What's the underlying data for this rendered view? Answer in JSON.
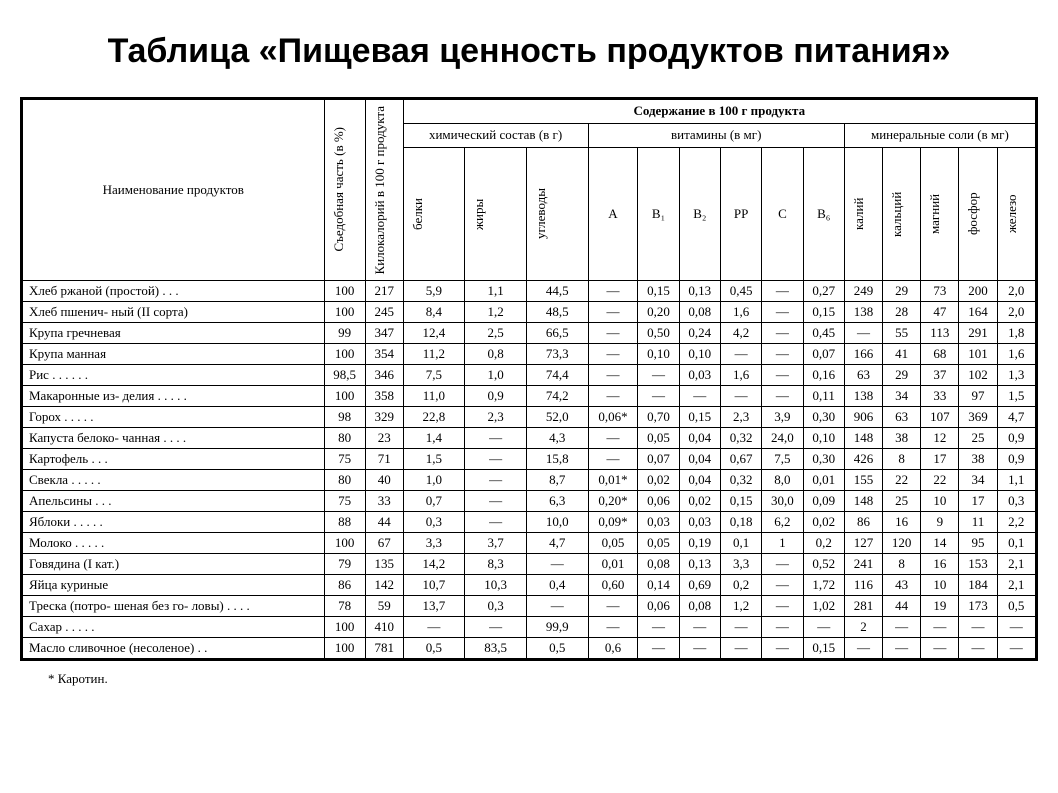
{
  "title": "Таблица «Пищевая ценность продуктов питания»",
  "footnote": "* Каротин.",
  "headers": {
    "name": "Наименование продуктов",
    "edible": "Съедобная часть (в %)",
    "kcal": "Килокалорий в 100 г продукта",
    "content": "Содержание в 100 г продукта",
    "chem": "химический состав (в г)",
    "vitamins": "витамины (в мг)",
    "minerals": "минеральные соли (в мг)",
    "protein": "белки",
    "fat": "жиры",
    "carbs": "углеводы",
    "vA": "A",
    "vB1": "B₁",
    "vB2": "B₂",
    "vPP": "PP",
    "vC": "C",
    "vB6": "B₆",
    "k": "калий",
    "ca": "кальций",
    "mg": "магний",
    "p": "фосфор",
    "fe": "железо"
  },
  "rows": [
    {
      "name": "Хлеб ржаной (простой) . . .",
      "edible": "100",
      "kcal": "217",
      "protein": "5,9",
      "fat": "1,1",
      "carbs": "44,5",
      "A": "—",
      "B1": "0,15",
      "B2": "0,13",
      "PP": "0,45",
      "C": "—",
      "B6": "0,27",
      "K": "249",
      "Ca": "29",
      "Mg": "73",
      "P": "200",
      "Fe": "2,0"
    },
    {
      "name": "Хлеб пшенич- ный (II сорта)",
      "edible": "100",
      "kcal": "245",
      "protein": "8,4",
      "fat": "1,2",
      "carbs": "48,5",
      "A": "—",
      "B1": "0,20",
      "B2": "0,08",
      "PP": "1,6",
      "C": "—",
      "B6": "0,15",
      "K": "138",
      "Ca": "28",
      "Mg": "47",
      "P": "164",
      "Fe": "2,0"
    },
    {
      "name": "Крупа гречневая",
      "edible": "99",
      "kcal": "347",
      "protein": "12,4",
      "fat": "2,5",
      "carbs": "66,5",
      "A": "—",
      "B1": "0,50",
      "B2": "0,24",
      "PP": "4,2",
      "C": "—",
      "B6": "0,45",
      "K": "—",
      "Ca": "55",
      "Mg": "113",
      "P": "291",
      "Fe": "1,8"
    },
    {
      "name": "Крупа манная",
      "edible": "100",
      "kcal": "354",
      "protein": "11,2",
      "fat": "0,8",
      "carbs": "73,3",
      "A": "—",
      "B1": "0,10",
      "B2": "0,10",
      "PP": "—",
      "C": "—",
      "B6": "0,07",
      "K": "166",
      "Ca": "41",
      "Mg": "68",
      "P": "101",
      "Fe": "1,6"
    },
    {
      "name": "Рис . . . . . .",
      "edible": "98,5",
      "kcal": "346",
      "protein": "7,5",
      "fat": "1,0",
      "carbs": "74,4",
      "A": "—",
      "B1": "—",
      "B2": "0,03",
      "PP": "1,6",
      "C": "—",
      "B6": "0,16",
      "K": "63",
      "Ca": "29",
      "Mg": "37",
      "P": "102",
      "Fe": "1,3"
    },
    {
      "name": "Макаронные из- делия . . . . .",
      "edible": "100",
      "kcal": "358",
      "protein": "11,0",
      "fat": "0,9",
      "carbs": "74,2",
      "A": "—",
      "B1": "—",
      "B2": "—",
      "PP": "—",
      "C": "—",
      "B6": "0,11",
      "K": "138",
      "Ca": "34",
      "Mg": "33",
      "P": "97",
      "Fe": "1,5"
    },
    {
      "name": "Горох . . . . .",
      "edible": "98",
      "kcal": "329",
      "protein": "22,8",
      "fat": "2,3",
      "carbs": "52,0",
      "A": "0,06*",
      "B1": "0,70",
      "B2": "0,15",
      "PP": "2,3",
      "C": "3,9",
      "B6": "0,30",
      "K": "906",
      "Ca": "63",
      "Mg": "107",
      "P": "369",
      "Fe": "4,7"
    },
    {
      "name": "Капуста белоко- чанная . . . .",
      "edible": "80",
      "kcal": "23",
      "protein": "1,4",
      "fat": "—",
      "carbs": "4,3",
      "A": "—",
      "B1": "0,05",
      "B2": "0,04",
      "PP": "0,32",
      "C": "24,0",
      "B6": "0,10",
      "K": "148",
      "Ca": "38",
      "Mg": "12",
      "P": "25",
      "Fe": "0,9"
    },
    {
      "name": "Картофель . . .",
      "edible": "75",
      "kcal": "71",
      "protein": "1,5",
      "fat": "—",
      "carbs": "15,8",
      "A": "—",
      "B1": "0,07",
      "B2": "0,04",
      "PP": "0,67",
      "C": "7,5",
      "B6": "0,30",
      "K": "426",
      "Ca": "8",
      "Mg": "17",
      "P": "38",
      "Fe": "0,9"
    },
    {
      "name": "Свекла . . . . .",
      "edible": "80",
      "kcal": "40",
      "protein": "1,0",
      "fat": "—",
      "carbs": "8,7",
      "A": "0,01*",
      "B1": "0,02",
      "B2": "0,04",
      "PP": "0,32",
      "C": "8,0",
      "B6": "0,01",
      "K": "155",
      "Ca": "22",
      "Mg": "22",
      "P": "34",
      "Fe": "1,1"
    },
    {
      "name": "Апельсины . . .",
      "edible": "75",
      "kcal": "33",
      "protein": "0,7",
      "fat": "—",
      "carbs": "6,3",
      "A": "0,20*",
      "B1": "0,06",
      "B2": "0,02",
      "PP": "0,15",
      "C": "30,0",
      "B6": "0,09",
      "K": "148",
      "Ca": "25",
      "Mg": "10",
      "P": "17",
      "Fe": "0,3"
    },
    {
      "name": "Яблоки . . . . .",
      "edible": "88",
      "kcal": "44",
      "protein": "0,3",
      "fat": "—",
      "carbs": "10,0",
      "A": "0,09*",
      "B1": "0,03",
      "B2": "0,03",
      "PP": "0,18",
      "C": "6,2",
      "B6": "0,02",
      "K": "86",
      "Ca": "16",
      "Mg": "9",
      "P": "11",
      "Fe": "2,2"
    },
    {
      "name": "Молоко . . . . .",
      "edible": "100",
      "kcal": "67",
      "protein": "3,3",
      "fat": "3,7",
      "carbs": "4,7",
      "A": "0,05",
      "B1": "0,05",
      "B2": "0,19",
      "PP": "0,1",
      "C": "1",
      "B6": "0,2",
      "K": "127",
      "Ca": "120",
      "Mg": "14",
      "P": "95",
      "Fe": "0,1"
    },
    {
      "name": "Говядина (I кат.)",
      "edible": "79",
      "kcal": "135",
      "protein": "14,2",
      "fat": "8,3",
      "carbs": "—",
      "A": "0,01",
      "B1": "0,08",
      "B2": "0,13",
      "PP": "3,3",
      "C": "—",
      "B6": "0,52",
      "K": "241",
      "Ca": "8",
      "Mg": "16",
      "P": "153",
      "Fe": "2,1"
    },
    {
      "name": "Яйца куриные",
      "edible": "86",
      "kcal": "142",
      "protein": "10,7",
      "fat": "10,3",
      "carbs": "0,4",
      "A": "0,60",
      "B1": "0,14",
      "B2": "0,69",
      "PP": "0,2",
      "C": "—",
      "B6": "1,72",
      "K": "116",
      "Ca": "43",
      "Mg": "10",
      "P": "184",
      "Fe": "2,1"
    },
    {
      "name": "Треска (потро- шеная без го- ловы) . . . .",
      "edible": "78",
      "kcal": "59",
      "protein": "13,7",
      "fat": "0,3",
      "carbs": "—",
      "A": "—",
      "B1": "0,06",
      "B2": "0,08",
      "PP": "1,2",
      "C": "—",
      "B6": "1,02",
      "K": "281",
      "Ca": "44",
      "Mg": "19",
      "P": "173",
      "Fe": "0,5"
    },
    {
      "name": "Сахар . . . . .",
      "edible": "100",
      "kcal": "410",
      "protein": "—",
      "fat": "—",
      "carbs": "99,9",
      "A": "—",
      "B1": "—",
      "B2": "—",
      "PP": "—",
      "C": "—",
      "B6": "—",
      "K": "2",
      "Ca": "—",
      "Mg": "—",
      "P": "—",
      "Fe": "—"
    },
    {
      "name": "Масло сливочное (несоленое) . .",
      "edible": "100",
      "kcal": "781",
      "protein": "0,5",
      "fat": "83,5",
      "carbs": "0,5",
      "A": "0,6",
      "B1": "—",
      "B2": "—",
      "PP": "—",
      "C": "—",
      "B6": "0,15",
      "K": "—",
      "Ca": "—",
      "Mg": "—",
      "P": "—",
      "Fe": "—"
    }
  ],
  "style": {
    "background": "#ffffff",
    "text": "#000000",
    "border": "#000000",
    "title_fontsize": 34,
    "table_fontsize": 13
  }
}
